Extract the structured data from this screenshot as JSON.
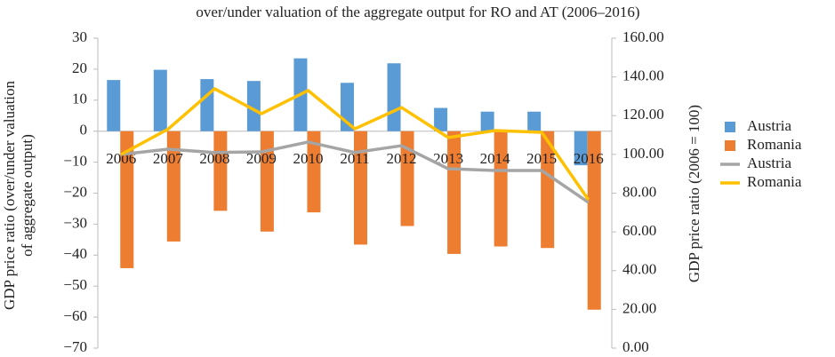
{
  "chart_data": {
    "type": "bar",
    "title": "over/under valuation of the aggregate output for RO and AT (2006–2016)",
    "ylabel": [
      "GDP price ratio (over/under valuation",
      "of aggregate output)"
    ],
    "y2label": "GDP price ratio (2006 = 100)",
    "categories": [
      "2006",
      "2007",
      "2008",
      "2009",
      "2010",
      "2011",
      "2012",
      "2013",
      "2014",
      "2015",
      "2016"
    ],
    "series": [
      {
        "name": "Austria",
        "type": "bar",
        "color": "#5b9bd5",
        "values": [
          16.5,
          19.8,
          16.8,
          16.2,
          23.5,
          15.6,
          21.9,
          7.5,
          6.3,
          6.3,
          -11
        ]
      },
      {
        "name": "Romania",
        "type": "bar",
        "color": "#ed7d31",
        "values": [
          -44.2,
          -35.6,
          -25.7,
          -32.4,
          -26.2,
          -36.6,
          -30.6,
          -39.6,
          -37.2,
          -37.7,
          -57.6
        ]
      },
      {
        "name": "Austria",
        "type": "line",
        "axis": "y2",
        "color": "#a5a5a5",
        "values": [
          100,
          102.7,
          101,
          101.3,
          106.4,
          101,
          104.5,
          92.6,
          91.7,
          91.7,
          75.2
        ]
      },
      {
        "name": "Romania",
        "type": "line",
        "axis": "y2",
        "color": "#ffc000",
        "values": [
          100,
          113,
          133.9,
          121,
          133,
          113.2,
          124.2,
          108.7,
          112.3,
          111.4,
          76.6
        ]
      }
    ],
    "ylim": [
      -70,
      30
    ],
    "yticks": [
      {
        "value": -70,
        "label": "−70"
      },
      {
        "value": -60,
        "label": "−60"
      },
      {
        "value": -50,
        "label": "−50"
      },
      {
        "value": -40,
        "label": "−40"
      },
      {
        "value": -30,
        "label": "−30"
      },
      {
        "value": -20,
        "label": "−20"
      },
      {
        "value": -10,
        "label": "−10"
      },
      0,
      10,
      20,
      30
    ],
    "y2lim": [
      0,
      160
    ],
    "y2ticks": [
      {
        "value": 0,
        "label": "0.00"
      },
      {
        "value": 20,
        "label": "20.00"
      },
      {
        "value": 40,
        "label": "40.00"
      },
      {
        "value": 60,
        "label": "60.00"
      },
      {
        "value": 80,
        "label": "80.00"
      },
      {
        "value": 100,
        "label": "100.00"
      },
      {
        "value": 120,
        "label": "120.00"
      },
      {
        "value": 140,
        "label": "140.00"
      },
      {
        "value": 160,
        "label": "160.00"
      }
    ],
    "legend": "right"
  }
}
